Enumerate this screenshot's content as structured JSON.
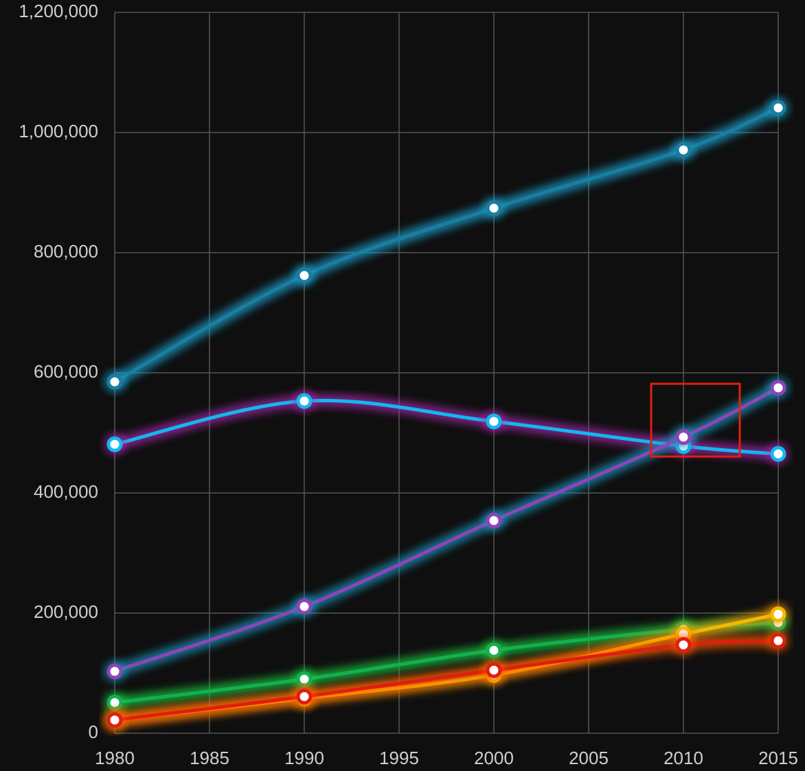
{
  "chart_data": {
    "type": "line",
    "x": [
      1980,
      1990,
      2000,
      2010,
      2015
    ],
    "series": [
      {
        "color": "#1b7ea0",
        "glow": "#1aa6d6",
        "values": [
          585000,
          762000,
          874000,
          971000,
          1041000
        ]
      },
      {
        "color": "#12b8f0",
        "glow": "#b02ab8",
        "values": [
          481000,
          553000,
          519000,
          478000,
          465000
        ]
      },
      {
        "color": "#8e44b8",
        "glow": "#1a9cc8",
        "values": [
          103000,
          211000,
          354000,
          493000,
          575000
        ]
      },
      {
        "color": "#12b050",
        "glow": "#1fd040",
        "values": [
          51000,
          90000,
          138000,
          173000,
          184000
        ]
      },
      {
        "color": "#f5b800",
        "glow": "#ff9a00",
        "values": [
          22000,
          58000,
          97000,
          165000,
          198000
        ]
      },
      {
        "color": "#e01e10",
        "glow": "#ff5a00",
        "values": [
          22000,
          61000,
          105000,
          147000,
          154000
        ]
      }
    ],
    "xlim": [
      1980,
      2015
    ],
    "xticks": [
      1980,
      1985,
      1990,
      1995,
      2000,
      2005,
      2010,
      2015
    ],
    "ylim": [
      0,
      1200000
    ],
    "yticks": [
      0,
      {
        "value": 200000,
        "label": "200,000"
      },
      {
        "value": 400000,
        "label": "400,000"
      },
      {
        "value": 600000,
        "label": "600,000"
      },
      {
        "value": 800000,
        "label": "800,000"
      },
      {
        "value": 1000000,
        "label": "1,000,000"
      },
      {
        "value": 1200000,
        "label": "1,200,000"
      }
    ],
    "grid": true
  }
}
